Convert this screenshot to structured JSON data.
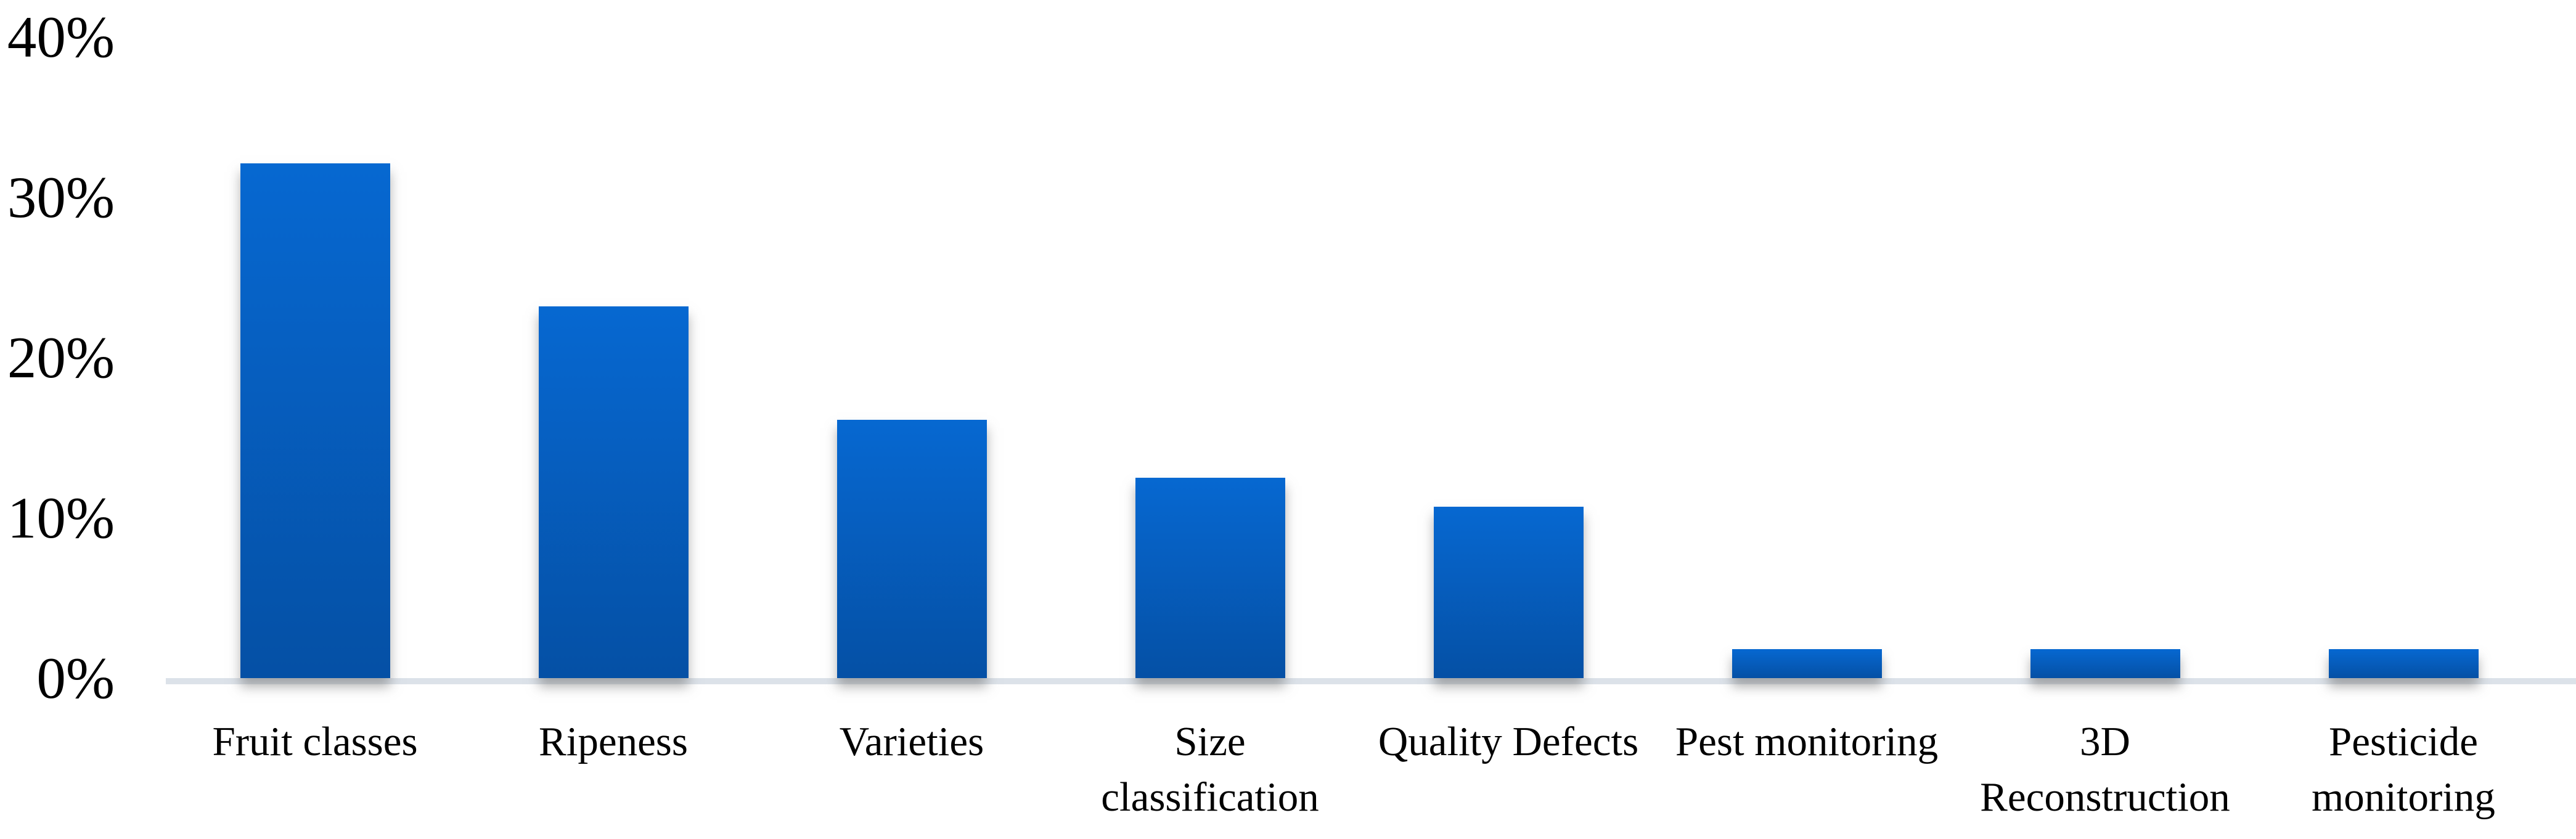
{
  "chart_data": {
    "type": "bar",
    "title": "",
    "xlabel": "",
    "ylabel": "",
    "categories": [
      "Fruit classes",
      "Ripeness",
      "Varieties",
      "Size classification",
      "Quality Defects",
      "Pest monitoring",
      "3D Reconstruction",
      "Pesticide monitoring"
    ],
    "category_lines": [
      [
        "Fruit classes"
      ],
      [
        "Ripeness"
      ],
      [
        "Varieties"
      ],
      [
        "Size",
        "classification"
      ],
      [
        "Quality Defects"
      ],
      [
        "Pest monitoring"
      ],
      [
        "3D",
        "Reconstruction"
      ],
      [
        "Pesticide",
        "monitoring"
      ]
    ],
    "values": [
      32.1,
      23.2,
      16.1,
      12.5,
      10.7,
      1.8,
      1.8,
      1.8
    ],
    "unit": "%",
    "y_ticks": [
      {
        "label": "0%",
        "value": 0
      },
      {
        "label": "10%",
        "value": 10
      },
      {
        "label": "20%",
        "value": 20
      },
      {
        "label": "30%",
        "value": 30
      },
      {
        "label": "40%",
        "value": 40
      }
    ],
    "ylim": [
      0,
      40
    ],
    "grid": "off",
    "legend": "none",
    "colors": {
      "bar_gradient_top": "#0668d1",
      "bar_gradient_bottom": "#0550a5",
      "axis_line": "#dce2e9",
      "text": "#000000",
      "background": "#ffffff"
    }
  }
}
